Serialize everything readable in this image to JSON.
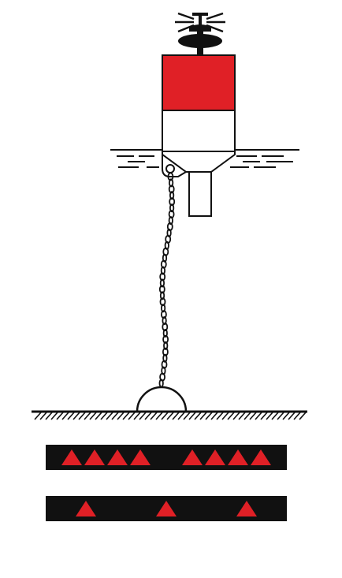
{
  "colors": {
    "red": "#e02026",
    "black": "#111111",
    "white": "#ffffff"
  },
  "buoy": {
    "topmark": "light-icon",
    "body_upper_color": "red",
    "body_lower_color": "white"
  },
  "strips": [
    {
      "name": "strip-four-triangle-groups",
      "background": "black",
      "mark": "triangle",
      "mark_color": "red",
      "groups": [
        4,
        4
      ]
    },
    {
      "name": "strip-single-triangles",
      "background": "black",
      "mark": "triangle",
      "mark_color": "red",
      "groups": [
        1,
        1,
        1
      ]
    }
  ]
}
